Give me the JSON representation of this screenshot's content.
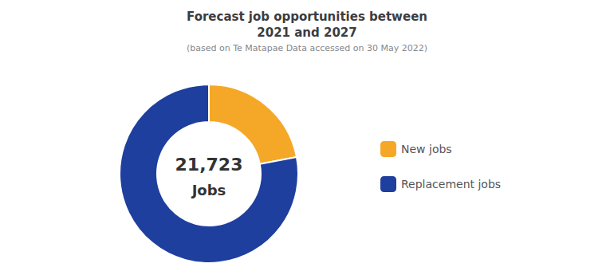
{
  "chart_data": {
    "type": "pie",
    "title": "Forecast job opportunities between\n2021 and 2027",
    "subtitle": "(based on Te Matapae Data accessed on 30 May 2022)",
    "annotations": [
      "21,723",
      "Jobs"
    ],
    "categories": [
      "New jobs",
      "Replacement jobs"
    ],
    "values": [
      22,
      78
    ],
    "colors": [
      "#F5A827",
      "#1E3F9E"
    ],
    "legend": "right"
  }
}
